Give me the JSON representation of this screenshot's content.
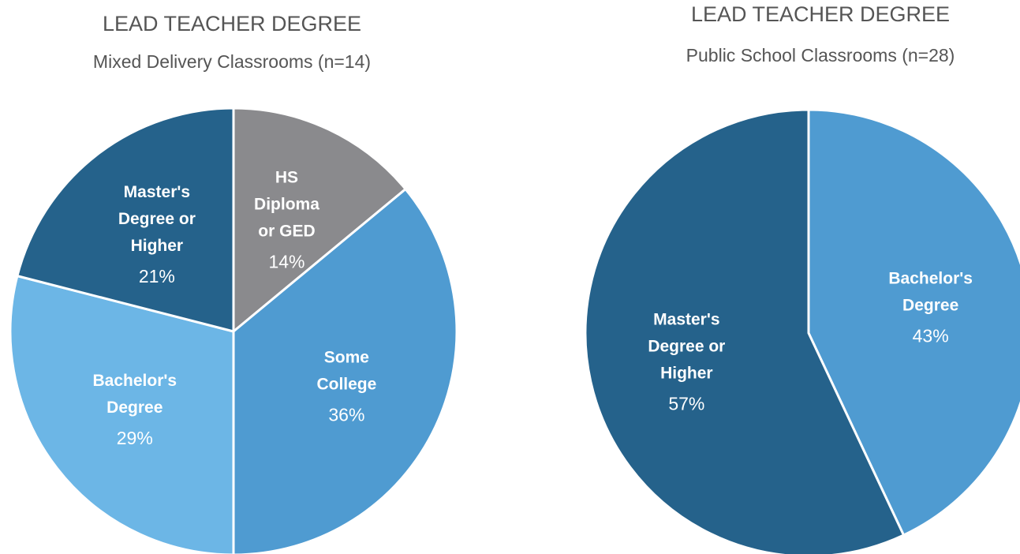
{
  "chart_data": [
    {
      "type": "pie",
      "title": "LEAD TEACHER DEGREE",
      "subtitle": "Mixed Delivery Classrooms (n=14)",
      "categories": [
        "HS Diploma or GED",
        "Some College",
        "Bachelor's Degree",
        "Master's Degree or Higher"
      ],
      "values": [
        14,
        36,
        29,
        21
      ],
      "value_labels": [
        "14%",
        "36%",
        "29%",
        "21%"
      ],
      "colors": [
        "#8a8a8d",
        "#4f9bd1",
        "#6cb6e6",
        "#25628b"
      ]
    },
    {
      "type": "pie",
      "title": "LEAD TEACHER DEGREE",
      "subtitle": "Public School Classrooms (n=28)",
      "categories": [
        "Bachelor's Degree",
        "Master's Degree or Higher"
      ],
      "values": [
        43,
        57
      ],
      "value_labels": [
        "43%",
        "57%"
      ],
      "colors": [
        "#4f9bd1",
        "#25628b"
      ]
    }
  ]
}
